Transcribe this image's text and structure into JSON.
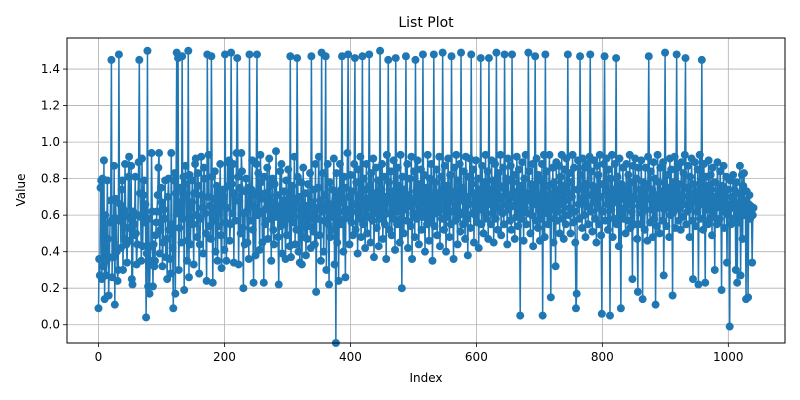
{
  "chart_data": {
    "type": "line",
    "title": "List Plot",
    "xlabel": "Index",
    "ylabel": "Value",
    "xlim": [
      -50,
      1090
    ],
    "ylim": [
      -0.1,
      1.57
    ],
    "xticks": [
      0,
      200,
      400,
      600,
      800,
      1000
    ],
    "yticks": [
      0.0,
      0.2,
      0.4,
      0.6,
      0.8,
      1.0,
      1.2,
      1.4
    ],
    "xtick_labels": [
      "0",
      "200",
      "400",
      "600",
      "800",
      "1000"
    ],
    "ytick_labels": [
      "0.0",
      "0.2",
      "0.4",
      "0.6",
      "0.8",
      "1.0",
      "1.2",
      "1.4"
    ],
    "grid": true,
    "marker": "circle",
    "color": "#1f77b4",
    "series": [
      {
        "values": [
          0.09,
          0.36,
          0.27,
          0.75,
          0.79,
          0.25,
          0.8,
          0.32,
          0.9,
          0.14,
          0.6,
          0.27,
          0.35,
          0.79,
          0.47,
          0.16,
          0.37,
          0.56,
          0.68,
          1.45,
          0.26,
          0.58,
          0.37,
          0.87,
          0.11,
          0.69,
          0.58,
          0.4,
          0.24,
          0.3,
          1.48,
          0.57,
          0.66,
          0.42,
          0.74,
          0.79,
          0.3,
          0.63,
          0.47,
          0.88,
          0.6,
          0.44,
          0.34,
          0.53,
          0.81,
          0.92,
          0.46,
          0.58,
          0.87,
          0.25,
          0.22,
          0.62,
          0.49,
          0.55,
          0.81,
          0.5,
          0.33,
          0.44,
          0.6,
          0.89,
          1.45,
          0.72,
          0.59,
          0.35,
          0.91,
          0.43,
          0.71,
          0.79,
          0.56,
          0.66,
          0.04,
          0.39,
          1.5,
          0.21,
          0.58,
          0.17,
          0.35,
          0.43,
          0.94,
          0.62,
          0.21,
          0.44,
          0.32,
          0.35,
          0.49,
          0.56,
          0.62,
          0.71,
          0.86,
          0.94,
          0.39,
          0.52,
          0.75,
          0.67,
          0.32,
          0.45,
          0.63,
          0.58,
          0.79,
          0.37,
          0.47,
          0.25,
          0.7,
          0.8,
          0.52,
          0.36,
          0.28,
          0.94,
          0.55,
          0.42,
          0.09,
          0.79,
          0.83,
          0.17,
          0.72,
          1.49,
          0.61,
          1.46,
          0.3,
          0.53,
          0.67,
          0.75,
          0.45,
          1.47,
          0.58,
          0.81,
          0.19,
          0.77,
          0.87,
          0.71,
          0.35,
          0.46,
          1.5,
          0.26,
          0.82,
          0.44,
          0.59,
          0.67,
          0.79,
          0.55,
          0.33,
          0.72,
          0.88,
          0.91,
          0.6,
          0.48,
          0.83,
          0.76,
          0.28,
          0.44,
          0.58,
          0.92,
          0.71,
          0.64,
          0.39,
          0.86,
          0.8,
          0.61,
          0.5,
          0.24,
          1.48,
          0.7,
          0.93,
          0.54,
          0.65,
          0.47,
          1.47,
          0.81,
          0.23,
          0.57,
          0.69,
          0.84,
          0.4,
          0.62,
          0.76,
          0.35,
          0.72,
          0.54,
          0.65,
          0.88,
          0.49,
          0.31,
          0.66,
          0.74,
          0.7,
          0.41,
          1.48,
          0.56,
          0.35,
          0.64,
          0.89,
          0.76,
          0.9,
          0.46,
          0.55,
          1.49,
          0.77,
          0.61,
          0.88,
          0.34,
          0.72,
          0.57,
          0.68,
          0.94,
          1.46,
          0.81,
          0.33,
          0.68,
          0.75,
          0.5,
          0.94,
          0.84,
          0.53,
          0.2,
          0.61,
          0.44,
          0.73,
          0.8,
          0.62,
          0.45,
          0.75,
          0.36,
          1.48,
          0.66,
          0.57,
          0.74,
          0.9,
          0.52,
          0.23,
          0.71,
          0.64,
          0.38,
          0.88,
          1.48,
          0.6,
          0.83,
          0.73,
          0.41,
          0.93,
          0.78,
          0.69,
          0.45,
          0.62,
          0.23,
          0.81,
          0.55,
          0.72,
          0.64,
          0.86,
          0.47,
          0.68,
          0.91,
          0.58,
          0.76,
          0.35,
          0.67,
          0.8,
          0.52,
          0.44,
          0.77,
          0.59,
          0.95,
          0.62,
          0.71,
          0.48,
          0.22,
          0.65,
          0.84,
          0.54,
          0.88,
          0.39,
          0.57,
          0.68,
          0.73,
          0.61,
          0.36,
          0.79,
          0.49,
          0.58,
          0.85,
          0.66,
          0.43,
          1.47,
          0.37,
          0.61,
          0.76,
          0.56,
          0.63,
          0.92,
          0.44,
          0.69,
          0.52,
          1.46,
          0.81,
          0.4,
          0.7,
          0.34,
          0.59,
          0.78,
          0.33,
          0.63,
          0.86,
          0.48,
          0.57,
          0.72,
          0.38,
          0.65,
          0.47,
          0.77,
          0.61,
          0.54,
          0.83,
          0.42,
          1.47,
          0.67,
          0.58,
          0.51,
          0.74,
          0.44,
          0.88,
          0.18,
          0.64,
          0.58,
          0.75,
          0.92,
          0.49,
          0.68,
          0.35,
          1.49,
          0.62,
          0.83,
          0.4,
          0.57,
          0.71,
          1.47,
          0.3,
          0.64,
          0.88,
          0.55,
          0.22,
          0.78,
          0.48,
          0.66,
          0.59,
          0.74,
          0.52,
          0.91,
          0.33,
          0.69,
          -0.1,
          0.83,
          0.45,
          0.71,
          0.24,
          0.62,
          0.88,
          0.55,
          0.74,
          1.47,
          0.67,
          0.4,
          0.81,
          0.58,
          0.26,
          0.75,
          0.63,
          0.94,
          1.48,
          0.7,
          0.44,
          0.61,
          0.82,
          0.56,
          0.73,
          0.49,
          0.66,
          0.88,
          1.46,
          0.52,
          0.78,
          0.62,
          0.39,
          0.85,
          0.71,
          0.58,
          0.92,
          0.48,
          0.67,
          1.47,
          0.55,
          0.8,
          0.63,
          0.42,
          0.74,
          0.88,
          0.5,
          0.69,
          0.59,
          1.48,
          0.76,
          0.45,
          0.83,
          0.64,
          0.57,
          0.91,
          0.37,
          0.72,
          0.61,
          0.86,
          0.53,
          0.68,
          0.79,
          0.43,
          0.65,
          1.5,
          0.58,
          0.74,
          0.88,
          0.47,
          0.62,
          0.81,
          0.55,
          0.7,
          0.36,
          0.93,
          0.61,
          1.45,
          0.78,
          0.52,
          0.67,
          0.84,
          0.49,
          0.73,
          0.58,
          0.9,
          0.64,
          0.41,
          1.46,
          0.7,
          0.55,
          0.86,
          0.62,
          0.76,
          0.45,
          0.93,
          0.58,
          0.2,
          0.81,
          0.68,
          0.5,
          0.74,
          0.63,
          1.47,
          0.57,
          0.88,
          0.42,
          0.71,
          0.65,
          0.8,
          0.54,
          0.92,
          0.36,
          0.69,
          0.61,
          0.84,
          0.48,
          1.45,
          0.73,
          0.58,
          0.9,
          0.66,
          0.44,
          0.77,
          0.62,
          0.85,
          0.52,
          0.71,
          1.48,
          0.59,
          0.82,
          0.4,
          0.68,
          0.75,
          0.55,
          0.93,
          0.63,
          0.46,
          0.8,
          0.57,
          0.88,
          0.7,
          0.35,
          0.66,
          1.48,
          0.54,
          0.78,
          0.61,
          0.85,
          0.49,
          0.72,
          0.64,
          0.92,
          0.43,
          0.69,
          0.81,
          0.58,
          1.49,
          0.74,
          0.52,
          0.87,
          0.63,
          0.4,
          0.76,
          0.59,
          0.91,
          0.67,
          0.48,
          0.82,
          0.55,
          1.47,
          0.7,
          0.62,
          0.36,
          0.86,
          0.73,
          0.57,
          0.93,
          0.65,
          0.44,
          0.79,
          0.6,
          0.88,
          0.51,
          1.49,
          0.68,
          0.75,
          0.55,
          0.84,
          0.62,
          0.47,
          0.92,
          0.7,
          0.58,
          0.38,
          0.81,
          0.66,
          0.91,
          0.53,
          1.48,
          0.77,
          0.61,
          0.85,
          0.45,
          0.72,
          0.6,
          0.9,
          0.67,
          0.56,
          0.8,
          0.42,
          0.74,
          0.63,
          1.46,
          0.55,
          0.87,
          0.69,
          0.5,
          0.78,
          0.62,
          0.93,
          0.58,
          0.7,
          0.84,
          0.47,
          1.46,
          0.66,
          0.74,
          0.55,
          0.9,
          0.61,
          0.79,
          0.45,
          0.72,
          0.88,
          0.58,
          1.49,
          0.68,
          0.52,
          0.83,
          0.64,
          0.76,
          0.93,
          0.49,
          0.7,
          0.61,
          0.86,
          0.55,
          1.48,
          0.74,
          0.66,
          0.8,
          0.44,
          0.91,
          0.63,
          0.71,
          0.57,
          0.87,
          0.52,
          1.48,
          0.78,
          0.65,
          0.82,
          0.47,
          0.69,
          0.59,
          0.92,
          0.73,
          0.54,
          0.85,
          0.62,
          0.05,
          0.76,
          0.58,
          0.89,
          0.7,
          0.46,
          0.8,
          0.64,
          0.93,
          0.55,
          0.72,
          0.61,
          1.49,
          0.84,
          0.68,
          0.5,
          0.77,
          0.6,
          0.88,
          0.43,
          0.74,
          0.66,
          1.47,
          0.57,
          0.91,
          0.7,
          0.53,
          0.82,
          0.63,
          0.46,
          0.79,
          0.58,
          0.88,
          0.05,
          0.71,
          0.93,
          0.48,
          1.48,
          0.65,
          0.84,
          0.61,
          0.55,
          0.76,
          0.93,
          0.58,
          0.15,
          0.72,
          0.63,
          0.86,
          0.45,
          0.78,
          0.66,
          0.32,
          0.89,
          0.57,
          0.74,
          0.62,
          0.87,
          0.5,
          0.81,
          0.66,
          0.93,
          0.58,
          0.76,
          0.47,
          0.85,
          0.68,
          0.55,
          0.91,
          0.72,
          1.48,
          0.6,
          0.83,
          0.64,
          0.5,
          0.78,
          0.7,
          0.93,
          0.56,
          0.86,
          0.62,
          0.45,
          0.09,
          0.17,
          0.74,
          0.9,
          0.66,
          0.58,
          1.47,
          0.82,
          0.69,
          0.53,
          0.91,
          0.74,
          0.6,
          0.86,
          0.48,
          0.77,
          0.65,
          0.88,
          0.55,
          0.71,
          0.92,
          1.48,
          0.62,
          0.84,
          0.51,
          0.76,
          0.67,
          0.9,
          0.58,
          0.73,
          0.45,
          0.87,
          0.64,
          0.82,
          0.55,
          0.93,
          0.7,
          0.49,
          0.06,
          0.77,
          0.62,
          0.88,
          1.47,
          0.57,
          0.73,
          0.91,
          0.66,
          0.52,
          0.85,
          0.7,
          0.05,
          0.8,
          0.63,
          0.93,
          0.48,
          0.74,
          0.58,
          0.88,
          0.67,
          1.46,
          0.55,
          0.81,
          0.72,
          0.43,
          0.91,
          0.62,
          0.09,
          0.77,
          0.69,
          0.86,
          0.58,
          0.74,
          0.64,
          0.5,
          0.88,
          0.71,
          0.57,
          0.82,
          0.66,
          0.93,
          0.53,
          0.78,
          0.62,
          0.25,
          0.87,
          0.7,
          0.55,
          0.91,
          0.69,
          0.8,
          0.47,
          0.18,
          0.86,
          0.65,
          0.74,
          0.55,
          0.9,
          0.61,
          0.14,
          0.78,
          0.7,
          0.52,
          0.86,
          0.63,
          0.77,
          0.46,
          0.92,
          1.47,
          0.69,
          0.56,
          0.84,
          0.63,
          0.74,
          0.48,
          0.89,
          0.58,
          0.8,
          0.11,
          0.71,
          0.54,
          0.93,
          0.64,
          0.78,
          0.5,
          0.86,
          0.67,
          0.73,
          0.57,
          0.89,
          0.27,
          0.63,
          1.49,
          0.7,
          0.54,
          0.82,
          0.65,
          0.75,
          0.48,
          0.91,
          0.6,
          0.85,
          0.69,
          0.16,
          0.78,
          0.62,
          0.92,
          0.53,
          0.74,
          1.48,
          0.65,
          0.86,
          0.57,
          0.77,
          0.64,
          0.52,
          0.89,
          0.7,
          0.59,
          0.83,
          0.66,
          0.93,
          1.46,
          0.55,
          0.75,
          0.62,
          0.87,
          0.71,
          0.48,
          0.81,
          0.65,
          0.91,
          0.57,
          0.25,
          0.77,
          0.68,
          0.89,
          0.54,
          0.73,
          0.62,
          0.85,
          0.22,
          0.7,
          0.93,
          0.58,
          0.79,
          1.45,
          0.66,
          0.52,
          0.88,
          0.71,
          0.23,
          0.81,
          0.63,
          0.76,
          0.55,
          0.9,
          0.67,
          0.58,
          0.82,
          0.74,
          0.49,
          0.86,
          0.61,
          0.7,
          0.3,
          0.78,
          0.64,
          0.55,
          0.89,
          0.66,
          0.73,
          0.58,
          0.84,
          0.69,
          0.19,
          0.76,
          0.62,
          0.87,
          0.53,
          0.71,
          0.65,
          0.81,
          0.34,
          0.74,
          0.6,
          0.66,
          -0.01,
          0.79,
          0.55,
          0.7,
          0.64,
          0.82,
          0.58,
          0.74,
          0.67,
          0.3,
          0.78,
          0.23,
          0.61,
          0.72,
          0.56,
          0.87,
          0.27,
          0.64,
          0.82,
          0.47,
          0.76,
          0.83,
          0.6,
          0.68,
          0.14,
          0.73,
          0.64,
          0.15,
          0.66,
          0.71,
          0.58,
          0.65,
          0.62,
          0.34,
          0.6,
          0.64
        ]
      }
    ]
  }
}
